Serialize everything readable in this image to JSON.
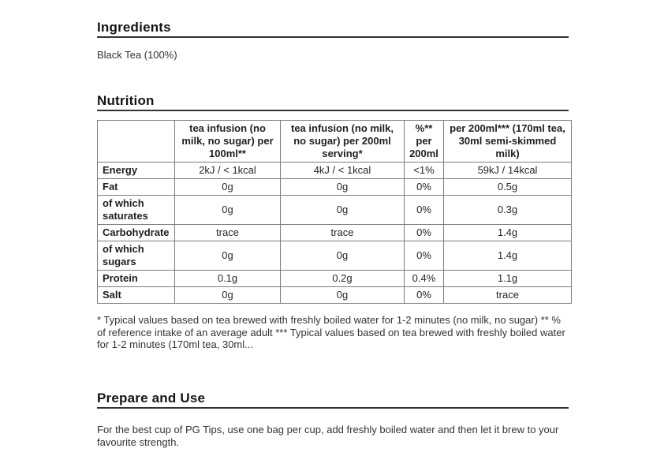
{
  "sections": {
    "ingredients": {
      "title": "Ingredients",
      "text": "Black Tea (100%)"
    },
    "nutrition": {
      "title": "Nutrition",
      "table": {
        "columns": [
          "",
          "tea infusion (no milk, no sugar) per 100ml**",
          "tea infusion (no milk, no sugar) per 200ml serving*",
          "%** per 200ml",
          "per 200ml*** (170ml tea, 30ml semi-skimmed milk)"
        ],
        "rows": [
          {
            "label": "Energy",
            "values": [
              "2kJ / < 1kcal",
              "4kJ / < 1kcal",
              "<1%",
              "59kJ / 14kcal"
            ]
          },
          {
            "label": "Fat",
            "values": [
              "0g",
              "0g",
              "0%",
              "0.5g"
            ]
          },
          {
            "label": "of which saturates",
            "values": [
              "0g",
              "0g",
              "0%",
              "0.3g"
            ]
          },
          {
            "label": "Carbohydrate",
            "values": [
              "trace",
              "trace",
              "0%",
              "1.4g"
            ]
          },
          {
            "label": "of which sugars",
            "values": [
              "0g",
              "0g",
              "0%",
              "1.4g"
            ]
          },
          {
            "label": "Protein",
            "values": [
              "0.1g",
              "0.2g",
              "0.4%",
              "1.1g"
            ]
          },
          {
            "label": "Salt",
            "values": [
              "0g",
              "0g",
              "0%",
              "trace"
            ]
          }
        ]
      },
      "footnote": "* Typical values based on tea brewed with freshly boiled water for 1-2 minutes (no milk, no sugar) ** % of reference intake of an average adult *** Typical values based on tea brewed with freshly boiled water for 1-2 minutes (170ml tea, 30ml..."
    },
    "prepare": {
      "title": "Prepare and Use",
      "text": "For the best cup of PG Tips, use one bag per cup, add freshly boiled water and then let it brew to your favourite strength."
    }
  }
}
